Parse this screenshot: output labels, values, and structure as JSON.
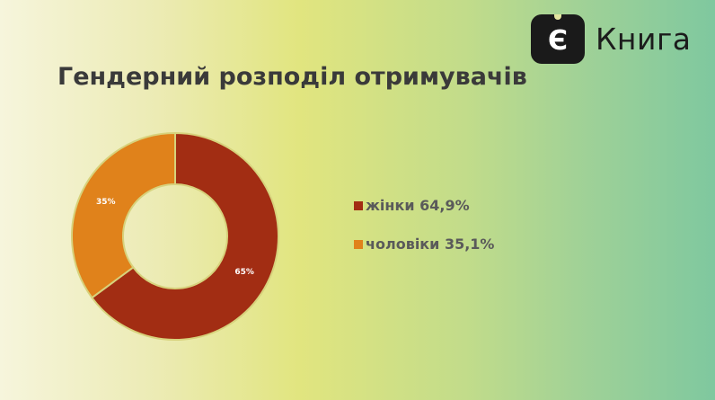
{
  "brand": {
    "glyph": "Є",
    "name": "Книга"
  },
  "chart_data": {
    "type": "pie",
    "title": "Гендерний розподіл отримувачів",
    "donut": true,
    "categories": [
      "жінки 64,9%",
      "чоловіки 35,1%"
    ],
    "values": [
      64.9,
      35.1
    ],
    "data_labels": [
      "65%",
      "35%"
    ],
    "colors": [
      "#a22d13",
      "#e0821b"
    ],
    "legend_position": "right"
  }
}
